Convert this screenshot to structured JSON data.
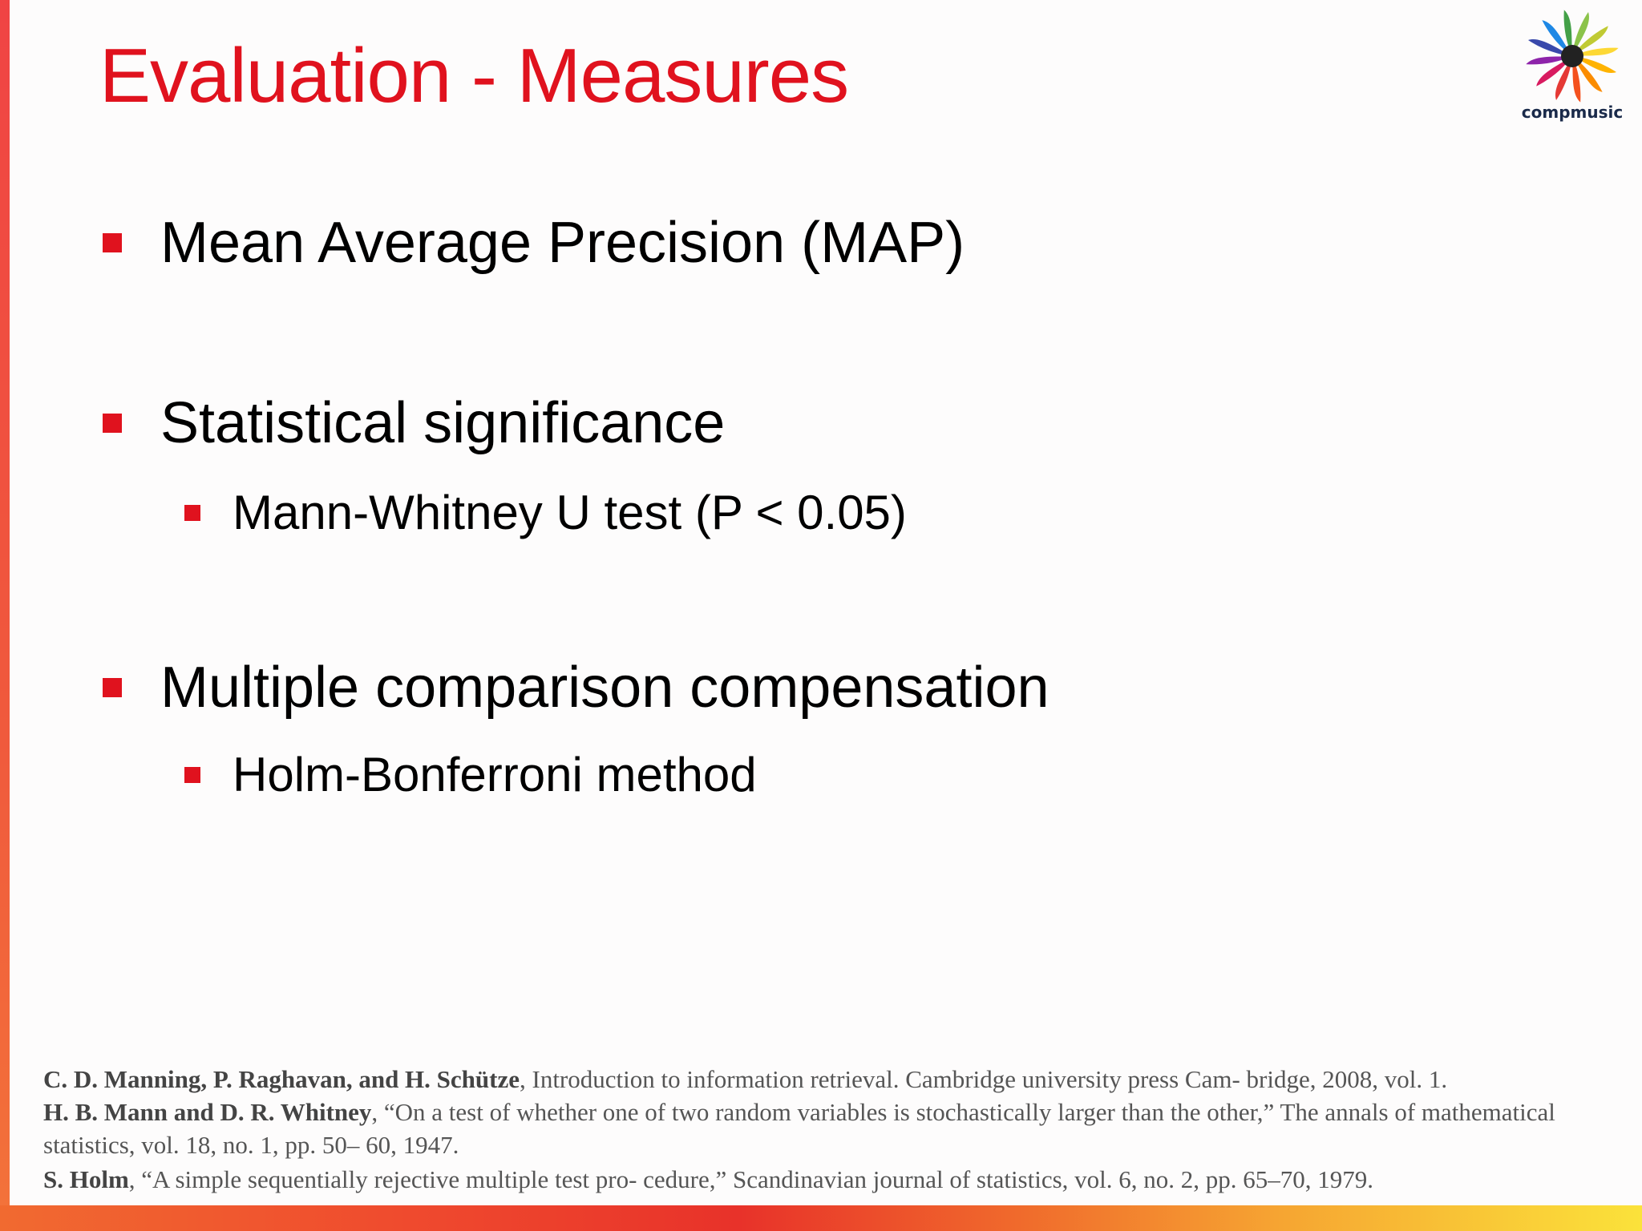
{
  "slide": {
    "title": "Evaluation - Measures",
    "logo_text": "compmusic",
    "bullets": [
      {
        "text": "Mean Average Precision (MAP)",
        "sub": []
      },
      {
        "text": "Statistical significance",
        "sub": [
          "Mann-Whitney U test (P < 0.05)"
        ]
      },
      {
        "text": "Multiple comparison compensation",
        "sub": [
          "Holm-Bonferroni method"
        ]
      }
    ],
    "references": [
      {
        "authors": "C. D. Manning, P. Raghavan, and H. Schütze",
        "rest": ", Introduction to information retrieval. Cambridge university press Cam- bridge, 2008, vol. 1."
      },
      {
        "authors": "H. B. Mann and D. R. Whitney",
        "rest": ", “On a test of whether one of two random variables is stochastically larger than the other,” The annals of mathematical statistics, vol. 18, no. 1, pp. 50– 60, 1947."
      },
      {
        "authors": "S. Holm",
        "rest": ", “A simple sequentially rejective multiple test pro- cedure,” Scandinavian journal of statistics, vol. 6, no. 2, pp. 65–70, 1979."
      }
    ]
  },
  "colors": {
    "accent": "#e0121e",
    "text": "#000000",
    "reference_text": "#555555"
  }
}
